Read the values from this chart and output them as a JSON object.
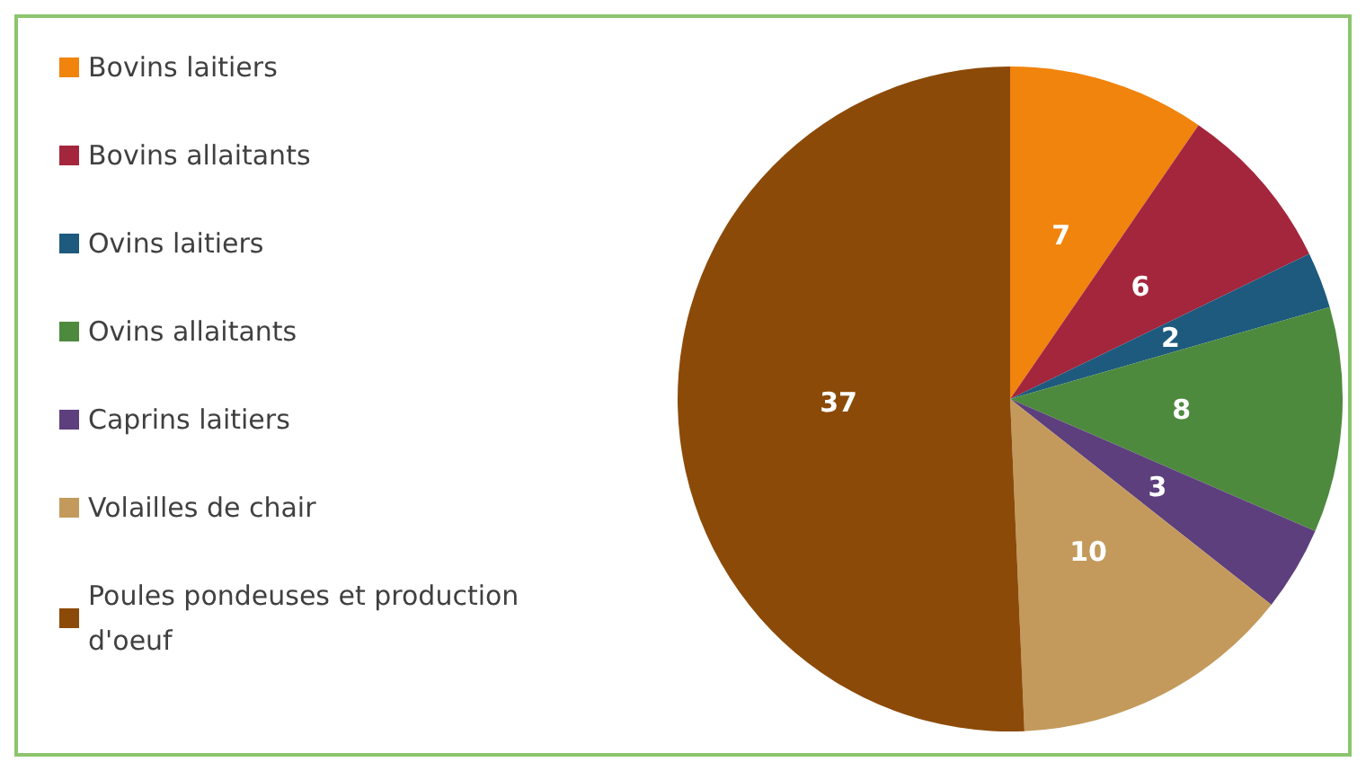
{
  "chart_data": {
    "type": "pie",
    "categories": [
      "Bovins laitiers",
      "Bovins allaitants",
      "Ovins laitiers",
      "Ovins allaitants",
      "Caprins laitiers",
      "Volailles de chair",
      "Poules pondeuses et production d'oeuf"
    ],
    "values": [
      7,
      6,
      2,
      8,
      3,
      10,
      37
    ],
    "colors": [
      "#f0840c",
      "#a3263d",
      "#1d5a7e",
      "#4e8a3e",
      "#5d3f7d",
      "#c39a5c",
      "#8c4a08"
    ],
    "data_labels": true,
    "legend": "left"
  }
}
